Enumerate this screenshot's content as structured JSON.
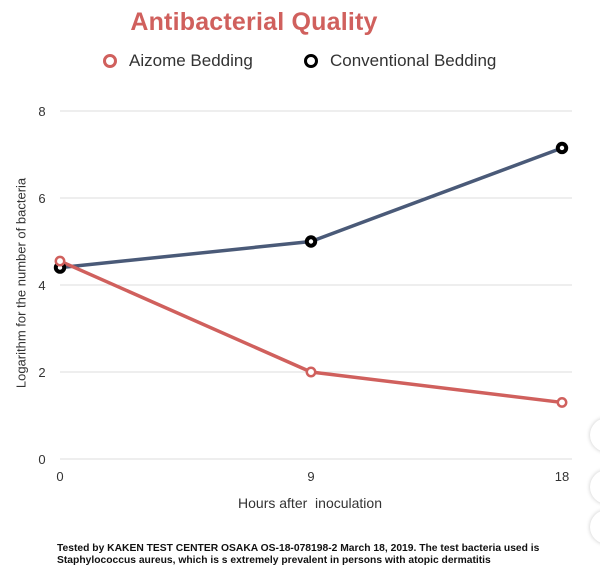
{
  "chart_data": {
    "type": "line",
    "title": "Antibacterial Quality",
    "x": [
      0,
      9,
      18
    ],
    "x_tick_labels": [
      "0",
      "9",
      "18"
    ],
    "xlabel": "Hours after  inoculation",
    "ylabel": "Logarithm for the number of bacteria",
    "ylim": [
      0,
      8
    ],
    "y_ticks": [
      0,
      2,
      4,
      6,
      8
    ],
    "grid": "horizontal",
    "legend_position": "top",
    "series": [
      {
        "name": "Aizome Bedding",
        "values": [
          4.55,
          2.0,
          1.3
        ],
        "color": "#d0605d"
      },
      {
        "name": "Conventional Bedding",
        "values": [
          4.4,
          5.0,
          7.15
        ],
        "color": "#4a5a78"
      }
    ]
  },
  "colors": {
    "title": "#d0605d",
    "aizome_marker_border": "#d0605d",
    "conventional_marker_border": "#000000",
    "grid": "#dcdcdc"
  },
  "footnote": "Tested by KAKEN TEST CENTER OSAKA OS-18-078198-2 March 18, 2019. The test bacteria used is Staphylococcus aureus, which is s extremely prevalent in persons with atopic dermatitis"
}
